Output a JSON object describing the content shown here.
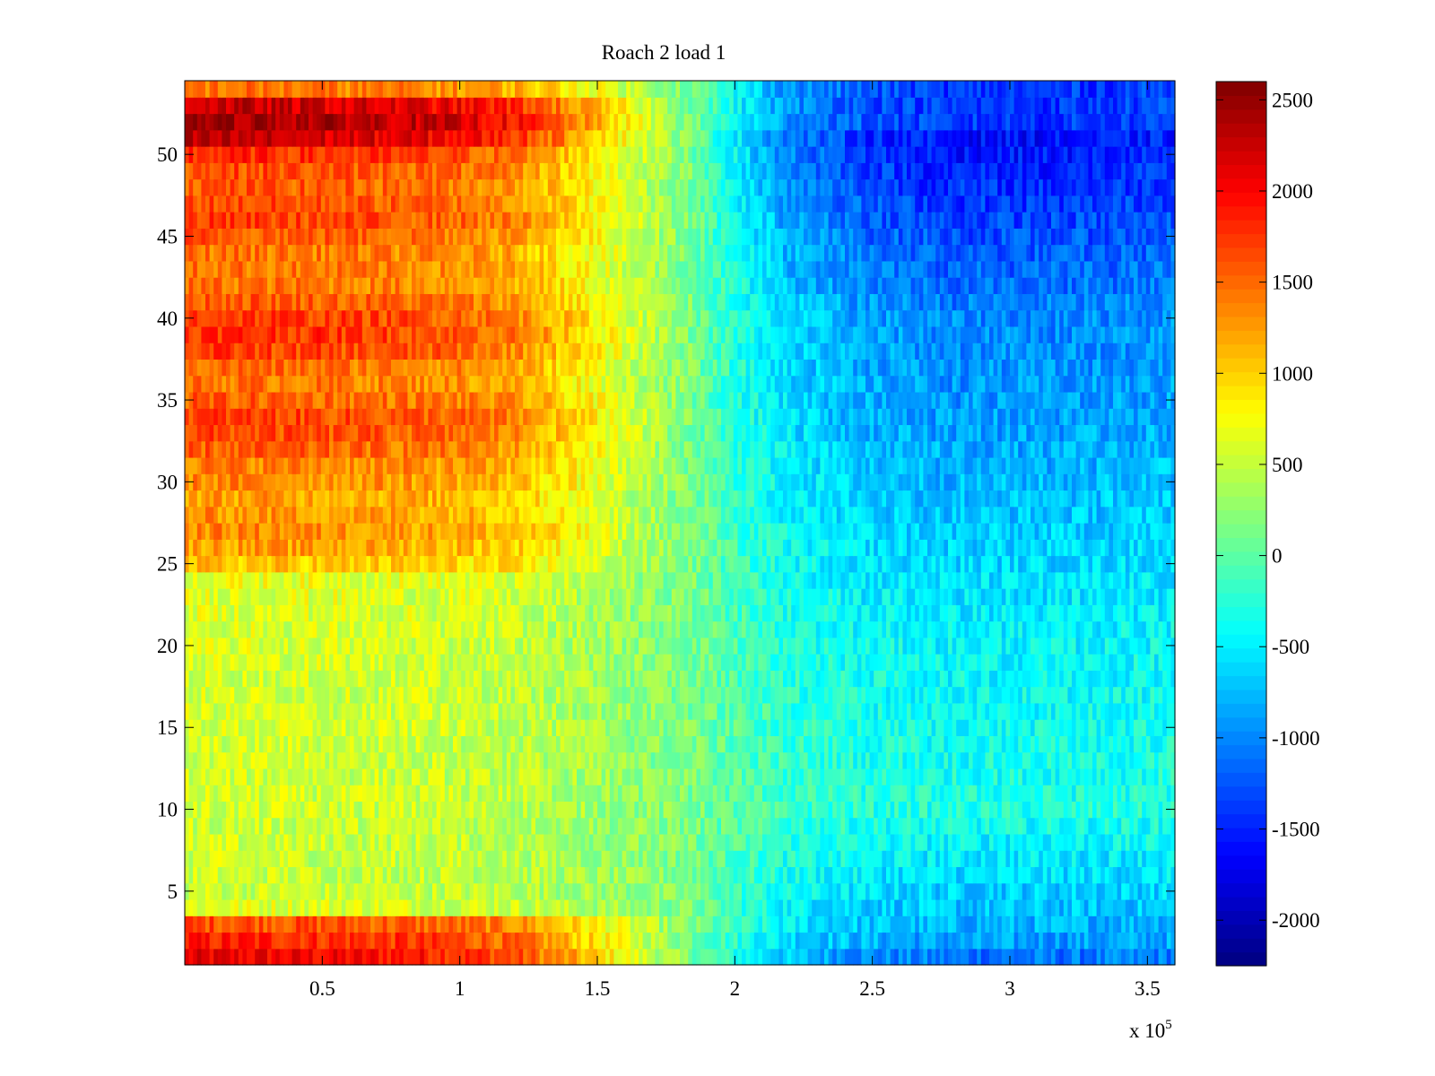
{
  "chart_data": {
    "type": "heatmap",
    "title": "Roach 2 load 1",
    "xlabel": "",
    "ylabel": "",
    "x_exponent_label": "x 10",
    "x_exponent": "5",
    "xlim": [
      0,
      360000
    ],
    "ylim": [
      0.5,
      54.5
    ],
    "x_ticks": [
      50000,
      100000,
      150000,
      200000,
      250000,
      300000,
      350000
    ],
    "x_tick_labels": [
      "0.5",
      "1",
      "1.5",
      "2",
      "2.5",
      "3",
      "3.5"
    ],
    "y_ticks": [
      5,
      10,
      15,
      20,
      25,
      30,
      35,
      40,
      45,
      50
    ],
    "y_tick_labels": [
      "5",
      "10",
      "15",
      "20",
      "25",
      "30",
      "35",
      "40",
      "45",
      "50"
    ],
    "colorbar": {
      "colormap": "jet",
      "clim": [
        -2250,
        2600
      ],
      "ticks": [
        -2000,
        -1500,
        -1000,
        -500,
        0,
        500,
        1000,
        1500,
        2000,
        2500
      ],
      "tick_labels": [
        "-2000",
        "-1500",
        "-1000",
        "-500",
        "0",
        "500",
        "1000",
        "1500",
        "2000",
        "2500"
      ]
    },
    "rows": 54,
    "x_profile": {
      "x": [
        0,
        20000,
        50000,
        80000,
        100000,
        120000,
        140000,
        160000,
        180000,
        200000,
        220000,
        250000,
        280000,
        320000,
        360000
      ],
      "relative_value": [
        1.0,
        1.0,
        0.97,
        0.93,
        0.88,
        0.78,
        0.56,
        0.3,
        0.05,
        -0.2,
        -0.38,
        -0.5,
        -0.55,
        -0.55,
        -0.52
      ]
    },
    "row_amplitude": [
      1900,
      1700,
      1500,
      500,
      380,
      380,
      380,
      380,
      380,
      400,
      400,
      400,
      400,
      400,
      420,
      420,
      420,
      420,
      450,
      450,
      450,
      480,
      500,
      550,
      900,
      1100,
      1200,
      1150,
      1100,
      1200,
      1250,
      1400,
      1500,
      1550,
      1400,
      1300,
      1350,
      1550,
      1650,
      1600,
      1450,
      1300,
      1300,
      1300,
      1450,
      1550,
      1500,
      1450,
      1500,
      1650,
      2100,
      2300,
      2100,
      1300
    ],
    "right_side_rows": {
      "note_units": "value at x=3.6e5 for selected rows",
      "row": [
        1,
        2,
        3,
        10,
        20,
        34,
        40,
        51,
        52
      ],
      "value": [
        -1100,
        -900,
        -800,
        -300,
        -450,
        -900,
        -1000,
        -1600,
        -1400
      ]
    }
  }
}
